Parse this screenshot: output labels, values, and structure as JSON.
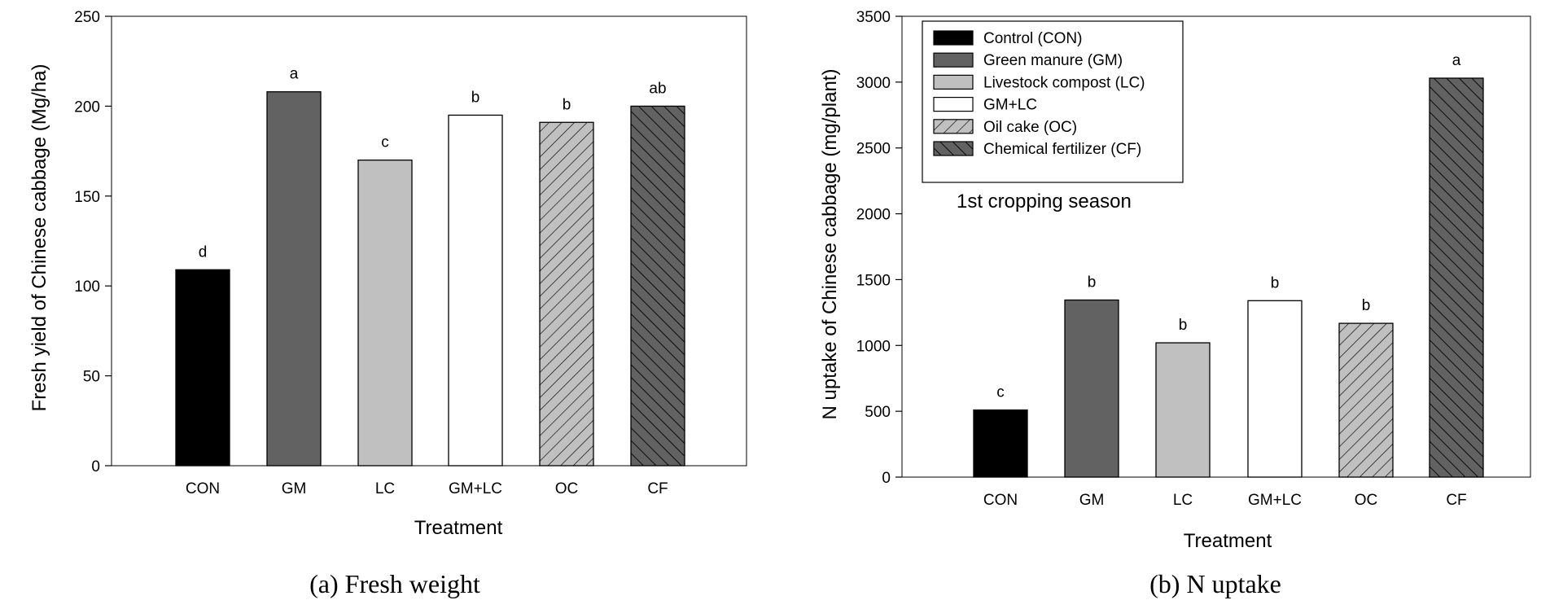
{
  "chart_data": [
    {
      "type": "bar",
      "categories": [
        "CON",
        "GM",
        "LC",
        "GM+LC",
        "OC",
        "CF"
      ],
      "values": [
        109,
        208,
        170,
        195,
        191,
        200
      ],
      "significance_letters": [
        "d",
        "a",
        "c",
        "b",
        "b",
        "ab"
      ],
      "fills": [
        "black",
        "darkgray",
        "lightgray",
        "white",
        "hatch-light",
        "hatch-dark"
      ],
      "title": "",
      "caption": "(a) Fresh weight",
      "xlabel": "Treatment",
      "ylabel": "Fresh yield of Chinese cabbage (Mg/ha)",
      "ylim": [
        0,
        250
      ],
      "yticks": [
        0,
        50,
        100,
        150,
        200,
        250
      ],
      "grid": false,
      "legend": null
    },
    {
      "type": "bar",
      "categories": [
        "CON",
        "GM",
        "LC",
        "GM+LC",
        "OC",
        "CF"
      ],
      "values": [
        510,
        1345,
        1020,
        1340,
        1168,
        3030
      ],
      "significance_letters": [
        "c",
        "b",
        "b",
        "b",
        "b",
        "a"
      ],
      "fills": [
        "black",
        "darkgray",
        "lightgray",
        "white",
        "hatch-light",
        "hatch-dark"
      ],
      "title": "",
      "caption": "(b) N uptake",
      "xlabel": "Treatment",
      "ylabel": "N uptake of Chinese cabbage (mg/plant)",
      "ylim": [
        0,
        3500
      ],
      "yticks": [
        0,
        500,
        1000,
        1500,
        2000,
        2500,
        3000,
        3500
      ],
      "grid": false,
      "annotation": "1st cropping season",
      "legend": {
        "position": "top-left",
        "entries": [
          {
            "label": "Control (CON)",
            "fill": "black"
          },
          {
            "label": "Green manure (GM)",
            "fill": "darkgray"
          },
          {
            "label": "Livestock compost (LC)",
            "fill": "lightgray"
          },
          {
            "label": "GM+LC",
            "fill": "white"
          },
          {
            "label": "Oil cake (OC)",
            "fill": "hatch-light"
          },
          {
            "label": "Chemical fertilizer (CF)",
            "fill": "hatch-dark"
          }
        ]
      }
    }
  ],
  "colors": {
    "black": "#000000",
    "darkgray": "#626262",
    "lightgray": "#c0c0c0",
    "white": "#ffffff",
    "hatch_light_bg": "#c0c0c0",
    "hatch_dark_bg": "#626262",
    "axis": "#000000"
  }
}
